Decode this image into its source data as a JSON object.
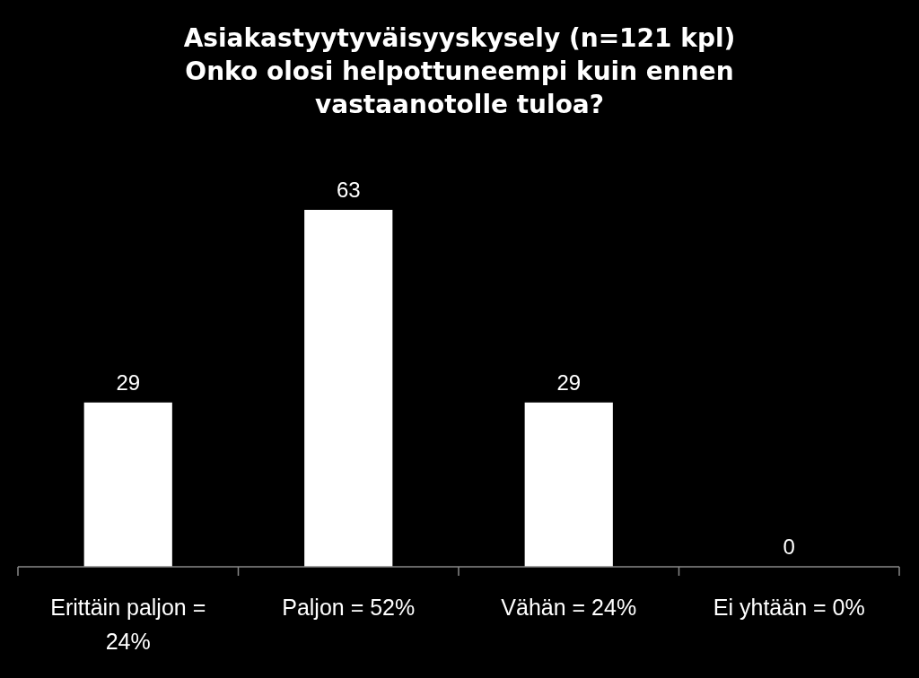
{
  "chart_data": {
    "type": "bar",
    "title": "Asiakastyytyväisyyskysely (n=121 kpl)\nOnko olosi helpottuneempi kuin ennen\nvastaanotolle tuloa?",
    "categories": [
      "Erittäin paljon = 24%",
      "Paljon = 52%",
      "Vähän = 24%",
      "Ei yhtään = 0%"
    ],
    "values": [
      29,
      63,
      29,
      0
    ],
    "color": "#ffffff",
    "data_labels": true
  }
}
